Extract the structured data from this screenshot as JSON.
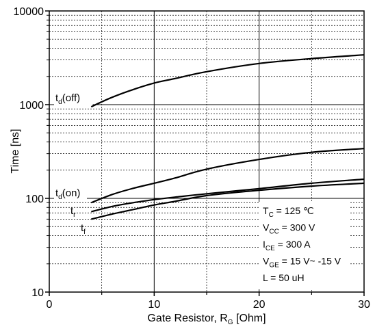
{
  "chart_data": {
    "type": "line",
    "xlabel": "Gate Resistor, R",
    "xlabel_sub": "G",
    "xlabel_unit": " [Ohm]",
    "ylabel": "Time [ns]",
    "y_scale": "log",
    "xlim": [
      0,
      30
    ],
    "ylim": [
      10,
      10000
    ],
    "x_ticks": [
      0,
      10,
      20,
      30
    ],
    "y_ticks": [
      10,
      100,
      1000,
      10000
    ],
    "x_tick_labels": [
      "0",
      "10",
      "20",
      "30"
    ],
    "y_tick_labels": [
      "10",
      "100",
      "1000",
      "10000"
    ],
    "grid": true,
    "series": [
      {
        "name": "t",
        "sub": "d",
        "suffix": "(off)",
        "x": [
          4,
          6,
          8,
          10,
          12,
          15,
          20,
          25,
          30
        ],
        "y": [
          950,
          1200,
          1450,
          1700,
          1900,
          2250,
          2750,
          3100,
          3400
        ]
      },
      {
        "name": "t",
        "sub": "d",
        "suffix": "(on)",
        "x": [
          4,
          6,
          8,
          10,
          12,
          15,
          20,
          25,
          30
        ],
        "y": [
          90,
          110,
          128,
          145,
          165,
          205,
          260,
          310,
          340
        ]
      },
      {
        "name": "t",
        "sub": "r",
        "suffix": "",
        "x": [
          4,
          6,
          8,
          10,
          12,
          15,
          20,
          25,
          30
        ],
        "y": [
          72,
          82,
          90,
          97,
          103,
          112,
          127,
          145,
          160
        ]
      },
      {
        "name": "t",
        "sub": "f",
        "suffix": "",
        "x": [
          4,
          6,
          8,
          10,
          12,
          15,
          20,
          25,
          30
        ],
        "y": [
          60,
          68,
          76,
          85,
          93,
          107,
          122,
          135,
          145
        ]
      }
    ],
    "annotations": [
      {
        "main": "T",
        "sub": "C",
        "rest": " = 125 ℃"
      },
      {
        "main": "V",
        "sub": "CC",
        "rest": " = 300 V"
      },
      {
        "main": "I",
        "sub": "CE",
        "rest": " = 300 A"
      },
      {
        "main": "V",
        "sub": "GE",
        "rest": " = 15 V~ -15 V"
      },
      {
        "main": "L = 50 uH",
        "sub": "",
        "rest": ""
      }
    ]
  }
}
